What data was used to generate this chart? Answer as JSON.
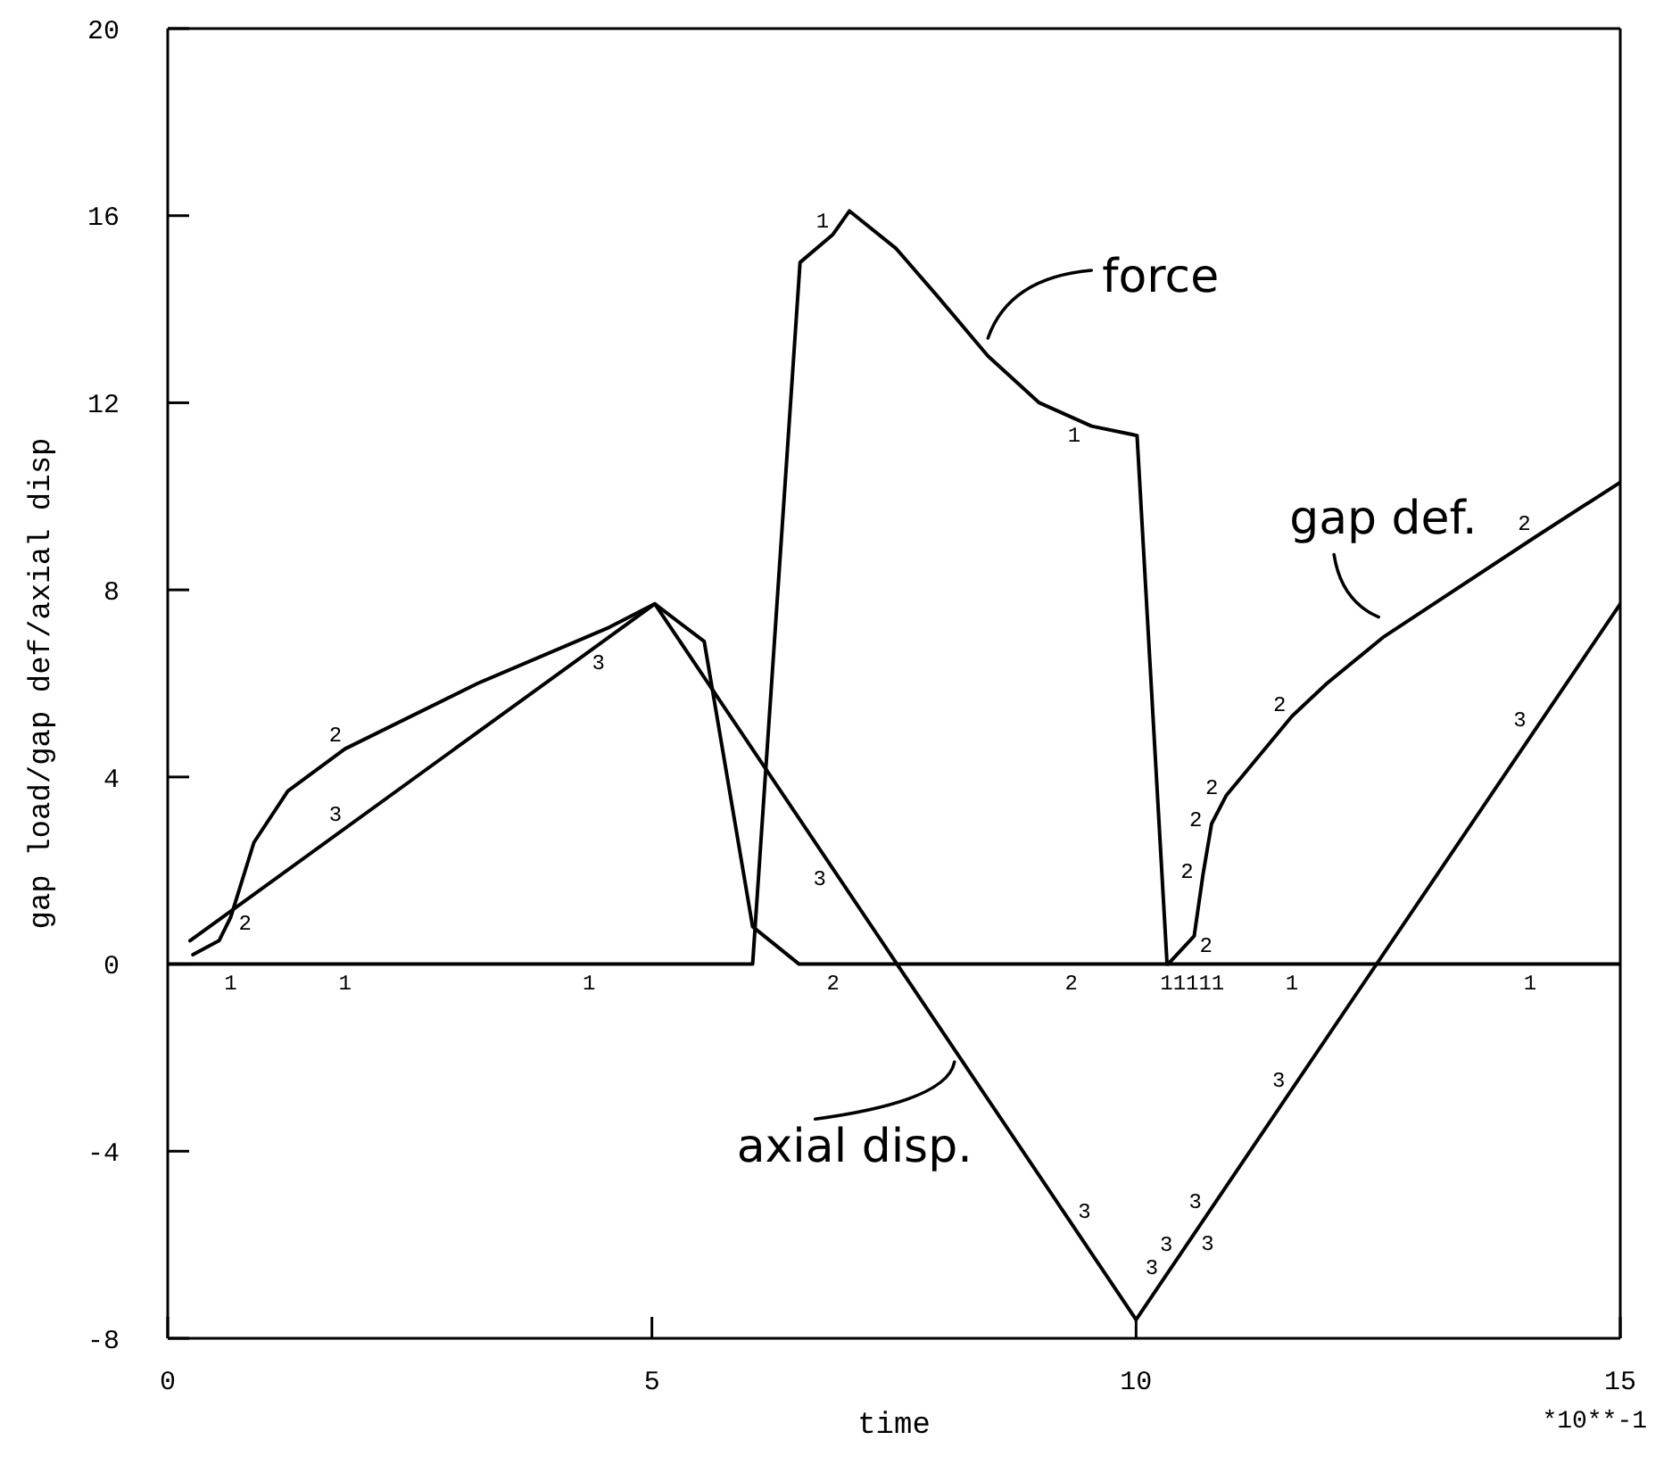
{
  "chart_data": {
    "type": "line",
    "xlabel": "time",
    "ylabel": "gap load/gap def/axial disp",
    "xlim": [
      0,
      15
    ],
    "xticks": [
      0,
      5,
      10,
      15
    ],
    "ylim": [
      -8,
      20
    ],
    "yticks": [
      -8,
      -4,
      0,
      4,
      8,
      12,
      16,
      20
    ],
    "marker": "none",
    "line_style": "solid",
    "series": [
      {
        "name": "force",
        "color": "#000000",
        "x": [
          0,
          6.04,
          6.53,
          6.87,
          7.04,
          7.52,
          7.94,
          8.47,
          9.0,
          9.54,
          10.01,
          10.32,
          15
        ],
        "values": [
          0,
          0,
          15.0,
          15.6,
          16.1,
          15.3,
          14.3,
          13.0,
          12.0,
          11.5,
          11.3,
          0,
          0
        ]
      },
      {
        "name": "gap def.",
        "color": "#000000",
        "x": [
          0.26,
          0.53,
          0.65,
          0.89,
          1.24,
          1.83,
          3.2,
          4.56,
          5.03,
          5.54,
          6.04,
          6.52,
          10.33,
          10.6,
          10.69,
          10.78,
          10.93,
          11.61,
          11.97,
          12.56,
          14.1,
          15
        ],
        "values": [
          0.2,
          0.5,
          1.0,
          2.6,
          3.7,
          4.6,
          6.0,
          7.2,
          7.7,
          6.9,
          0.8,
          0,
          0,
          0.6,
          1.9,
          3.0,
          3.6,
          5.3,
          6.0,
          7.0,
          9.1,
          10.3
        ]
      },
      {
        "name": "axial disp.",
        "color": "#000000",
        "x": [
          0.23,
          5.03,
          10.0,
          15
        ],
        "values": [
          0.5,
          7.7,
          -7.6,
          7.7
        ]
      }
    ],
    "annotations": [
      "*10**-1",
      {
        "text": "1",
        "x": 0.65,
        "y": 0
      },
      {
        "text": "2",
        "x": 0.65,
        "y": 1.0
      },
      {
        "text": "1",
        "x": 1.83,
        "y": 0
      },
      {
        "text": "1",
        "x": 4.35,
        "y": 0
      },
      {
        "text": "1",
        "x": 6.87,
        "y": 15.6
      },
      {
        "text": "1",
        "x": 9.36,
        "y": 11.7
      },
      {
        "text": "11111",
        "x": 10.58,
        "y": 0
      },
      {
        "text": "1",
        "x": 11.61,
        "y": 0
      },
      {
        "text": "1",
        "x": 14.07,
        "y": 0
      },
      {
        "text": "2",
        "x": 1.83,
        "y": 4.6
      },
      {
        "text": "2",
        "x": 6.87,
        "y": 0
      },
      {
        "text": "2",
        "x": 9.33,
        "y": 0
      },
      {
        "text": "2",
        "x": 10.6,
        "y": 0.6
      },
      {
        "text": "2",
        "x": 10.69,
        "y": 1.9
      },
      {
        "text": "2",
        "x": 10.78,
        "y": 3.0
      },
      {
        "text": "2",
        "x": 10.93,
        "y": 3.6
      },
      {
        "text": "2",
        "x": 11.61,
        "y": 5.3
      },
      {
        "text": "2",
        "x": 14.1,
        "y": 9.1
      },
      {
        "text": "3",
        "x": 1.83,
        "y": 2.9
      },
      {
        "text": "3",
        "x": 4.35,
        "y": 6.7
      },
      {
        "text": "3",
        "x": 6.87,
        "y": 2.0
      },
      {
        "text": "3",
        "x": 9.33,
        "y": -5.5
      },
      {
        "text": "3",
        "x": 10.3,
        "y": -6.7
      },
      {
        "text": "3",
        "x": 10.45,
        "y": -6.2
      },
      {
        "text": "3",
        "x": 10.6,
        "y": -5.8
      },
      {
        "text": "3",
        "x": 10.75,
        "y": -5.3
      },
      {
        "text": "3",
        "x": 11.61,
        "y": -2.7
      },
      {
        "text": "3",
        "x": 14.1,
        "y": 5.0
      }
    ]
  }
}
